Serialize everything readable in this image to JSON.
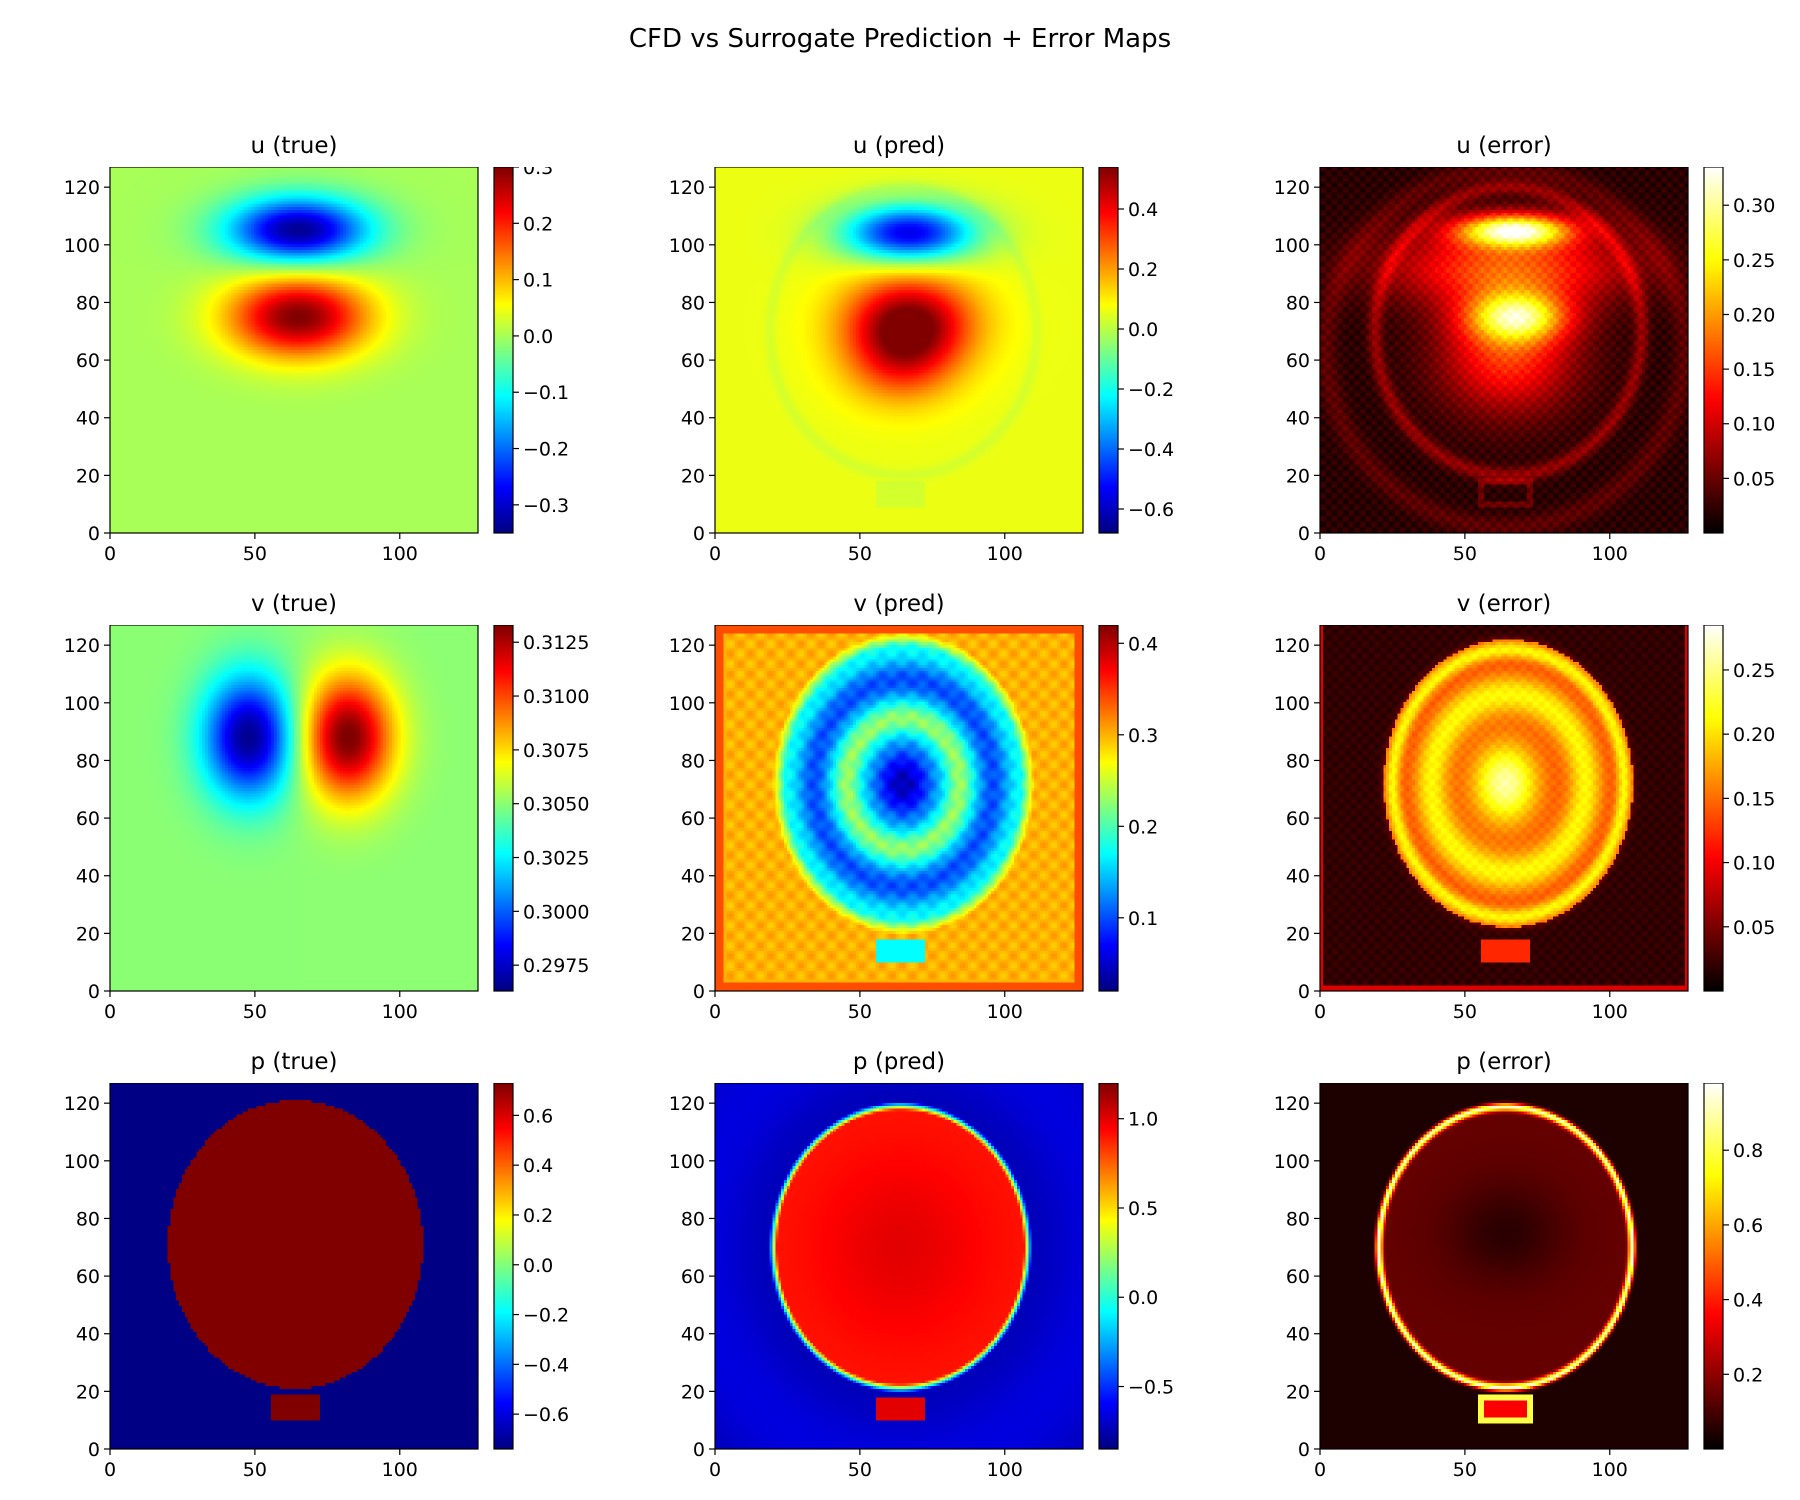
{
  "figure": {
    "title": "CFD vs Surrogate Prediction + Error Maps"
  },
  "chart_data": [
    {
      "type": "heatmap",
      "title": "u (true)",
      "colormap": "jet",
      "field": "u-true",
      "xlim": [
        0,
        127
      ],
      "ylim": [
        0,
        127
      ],
      "xticks": [
        "0",
        "50",
        "100"
      ],
      "yticks": [
        "0",
        "20",
        "40",
        "60",
        "80",
        "100",
        "120"
      ],
      "colorbar": {
        "range": [
          -0.35,
          0.3
        ],
        "ticks": [
          "0.3",
          "0.2",
          "0.1",
          "0.0",
          "−0.1",
          "−0.2",
          "−0.3"
        ],
        "tick_values": [
          0.3,
          0.2,
          0.1,
          0.0,
          -0.1,
          -0.2,
          -0.3
        ]
      }
    },
    {
      "type": "heatmap",
      "title": "u (pred)",
      "colormap": "jet",
      "field": "u-pred",
      "xlim": [
        0,
        127
      ],
      "ylim": [
        0,
        127
      ],
      "xticks": [
        "0",
        "50",
        "100"
      ],
      "yticks": [
        "0",
        "20",
        "40",
        "60",
        "80",
        "100",
        "120"
      ],
      "colorbar": {
        "range": [
          -0.68,
          0.54
        ],
        "ticks": [
          "0.4",
          "0.2",
          "0.0",
          "−0.2",
          "−0.4",
          "−0.6"
        ],
        "tick_values": [
          0.4,
          0.2,
          0.0,
          -0.2,
          -0.4,
          -0.6
        ]
      }
    },
    {
      "type": "heatmap",
      "title": "u (error)",
      "colormap": "hot",
      "field": "u-error",
      "xlim": [
        0,
        127
      ],
      "ylim": [
        0,
        127
      ],
      "xticks": [
        "0",
        "50",
        "100"
      ],
      "yticks": [
        "0",
        "20",
        "40",
        "60",
        "80",
        "100",
        "120"
      ],
      "colorbar": {
        "range": [
          0.0,
          0.335
        ],
        "ticks": [
          "0.30",
          "0.25",
          "0.20",
          "0.15",
          "0.10",
          "0.05"
        ],
        "tick_values": [
          0.3,
          0.25,
          0.2,
          0.15,
          0.1,
          0.05
        ]
      }
    },
    {
      "type": "heatmap",
      "title": "v (true)",
      "colormap": "jet",
      "field": "v-true",
      "xlim": [
        0,
        127
      ],
      "ylim": [
        0,
        127
      ],
      "xticks": [
        "0",
        "50",
        "100"
      ],
      "yticks": [
        "0",
        "20",
        "40",
        "60",
        "80",
        "100",
        "120"
      ],
      "colorbar": {
        "range": [
          0.2963,
          0.3133
        ],
        "ticks": [
          "0.3125",
          "0.3100",
          "0.3075",
          "0.3050",
          "0.3025",
          "0.3000",
          "0.2975"
        ],
        "tick_values": [
          0.3125,
          0.31,
          0.3075,
          0.305,
          0.3025,
          0.3,
          0.2975
        ]
      }
    },
    {
      "type": "heatmap",
      "title": "v (pred)",
      "colormap": "jet",
      "field": "v-pred",
      "xlim": [
        0,
        127
      ],
      "ylim": [
        0,
        127
      ],
      "xticks": [
        "0",
        "50",
        "100"
      ],
      "yticks": [
        "0",
        "20",
        "40",
        "60",
        "80",
        "100",
        "120"
      ],
      "colorbar": {
        "range": [
          0.02,
          0.42
        ],
        "ticks": [
          "0.4",
          "0.3",
          "0.2",
          "0.1"
        ],
        "tick_values": [
          0.4,
          0.3,
          0.2,
          0.1
        ]
      }
    },
    {
      "type": "heatmap",
      "title": "v (error)",
      "colormap": "hot",
      "field": "v-error",
      "xlim": [
        0,
        127
      ],
      "ylim": [
        0,
        127
      ],
      "xticks": [
        "0",
        "50",
        "100"
      ],
      "yticks": [
        "0",
        "20",
        "40",
        "60",
        "80",
        "100",
        "120"
      ],
      "colorbar": {
        "range": [
          0.0,
          0.285
        ],
        "ticks": [
          "0.25",
          "0.20",
          "0.15",
          "0.10",
          "0.05"
        ],
        "tick_values": [
          0.25,
          0.2,
          0.15,
          0.1,
          0.05
        ]
      }
    },
    {
      "type": "heatmap",
      "title": "p (true)",
      "colormap": "jet",
      "field": "p-true",
      "xlim": [
        0,
        127
      ],
      "ylim": [
        0,
        127
      ],
      "xticks": [
        "0",
        "50",
        "100"
      ],
      "yticks": [
        "0",
        "20",
        "40",
        "60",
        "80",
        "100",
        "120"
      ],
      "colorbar": {
        "range": [
          -0.74,
          0.73
        ],
        "ticks": [
          "0.6",
          "0.4",
          "0.2",
          "0.0",
          "−0.2",
          "−0.4",
          "−0.6"
        ],
        "tick_values": [
          0.6,
          0.4,
          0.2,
          0.0,
          -0.2,
          -0.4,
          -0.6
        ]
      }
    },
    {
      "type": "heatmap",
      "title": "p (pred)",
      "colormap": "jet",
      "field": "p-pred",
      "xlim": [
        0,
        127
      ],
      "ylim": [
        0,
        127
      ],
      "xticks": [
        "0",
        "50",
        "100"
      ],
      "yticks": [
        "0",
        "20",
        "40",
        "60",
        "80",
        "100",
        "120"
      ],
      "colorbar": {
        "range": [
          -0.85,
          1.2
        ],
        "ticks": [
          "1.0",
          "0.5",
          "0.0",
          "−0.5"
        ],
        "tick_values": [
          1.0,
          0.5,
          0.0,
          -0.5
        ]
      }
    },
    {
      "type": "heatmap",
      "title": "p (error)",
      "colormap": "hot",
      "field": "p-error",
      "xlim": [
        0,
        127
      ],
      "ylim": [
        0,
        127
      ],
      "xticks": [
        "0",
        "50",
        "100"
      ],
      "yticks": [
        "0",
        "20",
        "40",
        "60",
        "80",
        "100",
        "120"
      ],
      "colorbar": {
        "range": [
          0.0,
          0.98
        ],
        "ticks": [
          "0.8",
          "0.6",
          "0.4",
          "0.2"
        ],
        "tick_values": [
          0.8,
          0.6,
          0.4,
          0.2
        ]
      }
    }
  ]
}
